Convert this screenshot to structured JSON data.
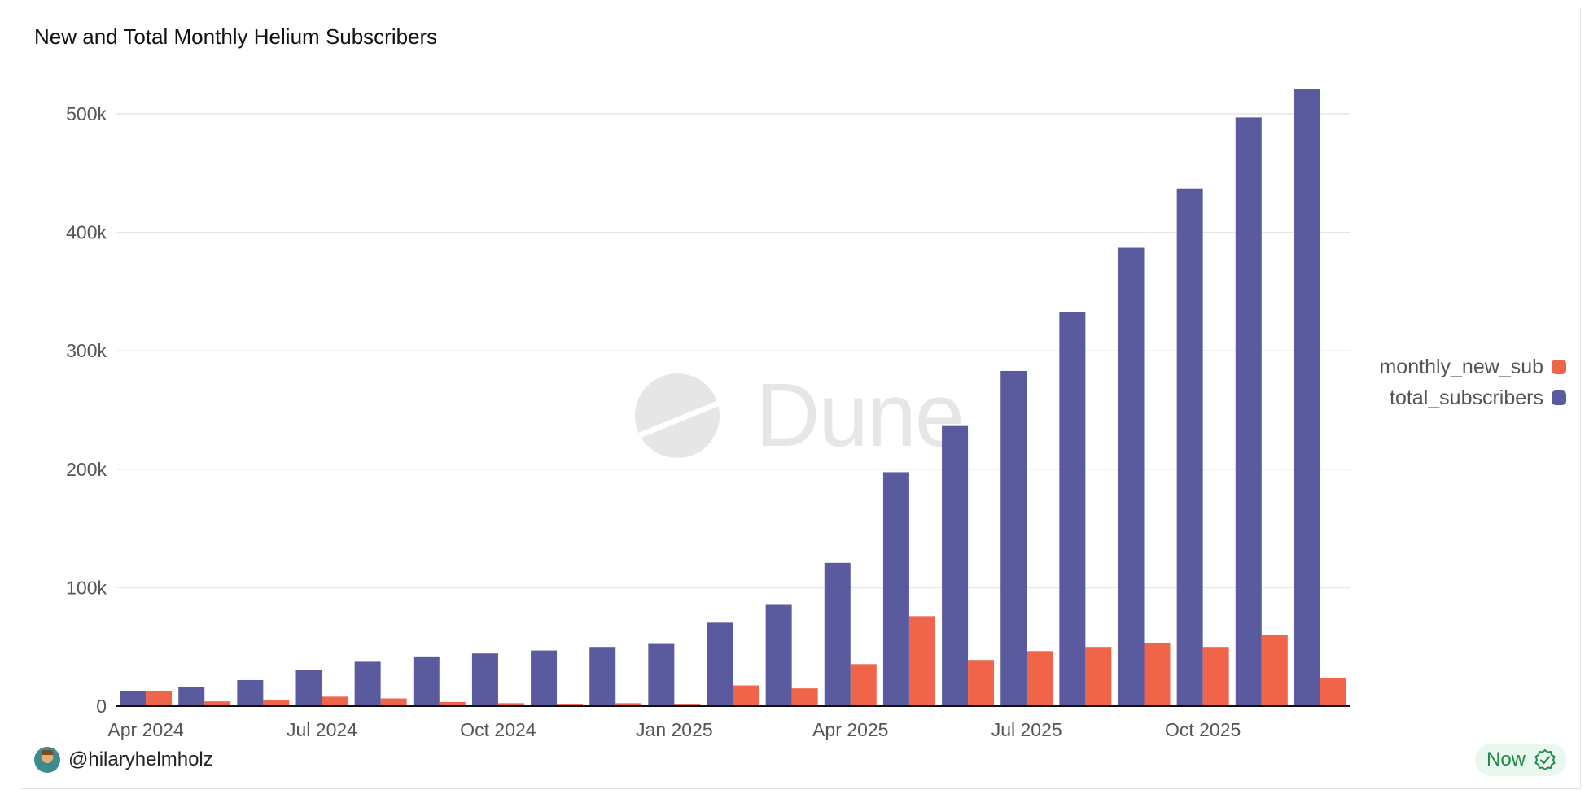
{
  "chart_data": {
    "type": "bar",
    "title": "New and Total Monthly Helium Subscribers",
    "categories": [
      "2024-04",
      "2024-05",
      "2024-06",
      "2024-07",
      "2024-08",
      "2024-09",
      "2024-10",
      "2024-11",
      "2024-12",
      "2025-01",
      "2025-02",
      "2025-03",
      "2025-04",
      "2025-05",
      "2025-06",
      "2025-07",
      "2025-08",
      "2025-09",
      "2025-10",
      "2025-11",
      "2025-12"
    ],
    "x_tick_labels": [
      "Apr 2024",
      "Jul 2024",
      "Oct 2024",
      "Jan 2025",
      "Apr 2025",
      "Jul 2025",
      "Oct 2025"
    ],
    "x_tick_indices": [
      0,
      3,
      6,
      9,
      12,
      15,
      18
    ],
    "series": [
      {
        "name": "total_subscribers",
        "color": "#5a5a9e",
        "values": [
          12500,
          16500,
          22000,
          30500,
          37500,
          42000,
          44500,
          47000,
          50000,
          52500,
          70500,
          85500,
          121000,
          197500,
          236500,
          283000,
          333000,
          387000,
          437000,
          497000,
          521000
        ]
      },
      {
        "name": "monthly_new_sub",
        "color": "#f06449",
        "values": [
          12500,
          4000,
          5000,
          8000,
          6500,
          3500,
          2500,
          2000,
          2500,
          2000,
          17500,
          15000,
          35500,
          76000,
          39000,
          46500,
          50000,
          53000,
          50000,
          60000,
          24000
        ]
      }
    ],
    "legend_order": [
      "monthly_new_sub",
      "total_subscribers"
    ],
    "legend_position": "right",
    "ylim": [
      0,
      520000
    ],
    "y_ticks": [
      0,
      100000,
      200000,
      300000,
      400000,
      500000
    ],
    "y_tick_labels": [
      "0",
      "100k",
      "200k",
      "300k",
      "400k",
      "500k"
    ],
    "grid": true,
    "xlabel": "",
    "ylabel": ""
  },
  "watermark": {
    "text": "Dune",
    "icon": "dune-logo-icon"
  },
  "footer": {
    "author": "@hilaryhelmholz",
    "status": "Now",
    "status_icon": "verified-check-icon"
  },
  "colors": {
    "grid": "#e6e6e6",
    "axis": "#111111",
    "tick_text": "#555555",
    "status_bg": "#eaf7ee",
    "status_text": "#1f8a4a"
  }
}
